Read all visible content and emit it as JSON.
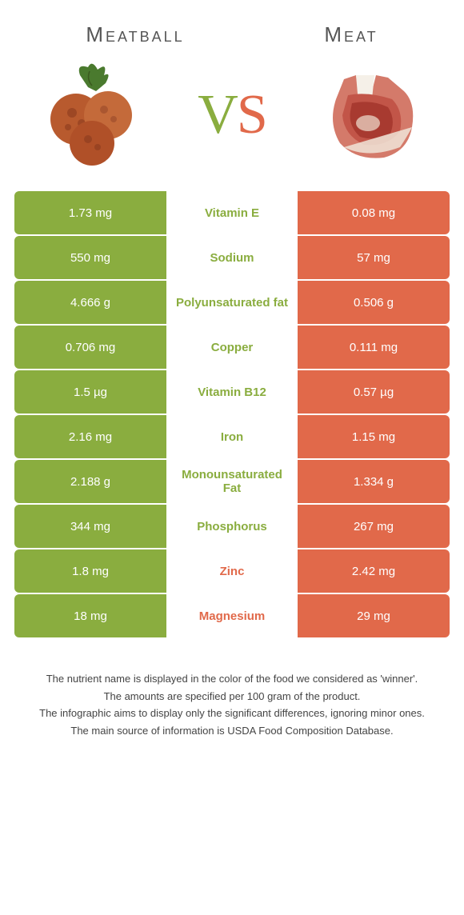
{
  "header": {
    "left_title": "Meatball",
    "right_title": "Meat",
    "vs_v": "V",
    "vs_s": "S"
  },
  "colors": {
    "left_bg": "#8aad3f",
    "right_bg": "#e1694a",
    "left_txt": "#8aad3f",
    "right_txt": "#e1694a"
  },
  "rows": [
    {
      "left": "1.73 mg",
      "label": "Vitamin E",
      "right": "0.08 mg",
      "winner": "left"
    },
    {
      "left": "550 mg",
      "label": "Sodium",
      "right": "57 mg",
      "winner": "left"
    },
    {
      "left": "4.666 g",
      "label": "Polyunsaturated fat",
      "right": "0.506 g",
      "winner": "left"
    },
    {
      "left": "0.706 mg",
      "label": "Copper",
      "right": "0.111 mg",
      "winner": "left"
    },
    {
      "left": "1.5 µg",
      "label": "Vitamin B12",
      "right": "0.57 µg",
      "winner": "left"
    },
    {
      "left": "2.16 mg",
      "label": "Iron",
      "right": "1.15 mg",
      "winner": "left"
    },
    {
      "left": "2.188 g",
      "label": "Monounsaturated Fat",
      "right": "1.334 g",
      "winner": "left"
    },
    {
      "left": "344 mg",
      "label": "Phosphorus",
      "right": "267 mg",
      "winner": "left"
    },
    {
      "left": "1.8 mg",
      "label": "Zinc",
      "right": "2.42 mg",
      "winner": "right"
    },
    {
      "left": "18 mg",
      "label": "Magnesium",
      "right": "29 mg",
      "winner": "right"
    }
  ],
  "footer": {
    "line1": "The nutrient name is displayed in the color of the food we considered as 'winner'.",
    "line2": "The amounts are specified per 100 gram of the product.",
    "line3": "The infographic aims to display only the significant differences, ignoring minor ones.",
    "line4": "The main source of information is USDA Food Composition Database."
  }
}
